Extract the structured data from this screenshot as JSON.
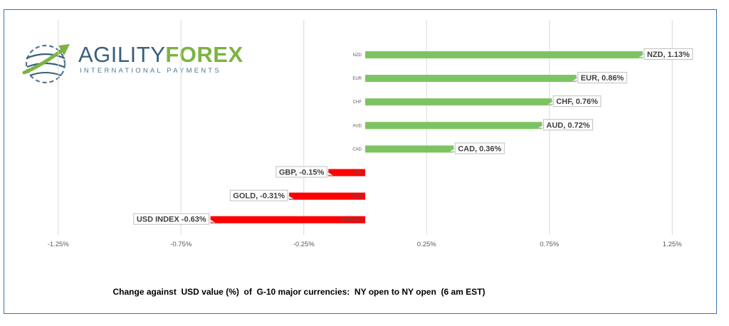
{
  "logo": {
    "word1": "AGILITY",
    "word2": "FOREX",
    "tagline": "INTERNATIONAL PAYMENTS"
  },
  "caption": "Change against  USD value (%)  of  G-10 major currencies:  NY open to NY open  (6 am EST)",
  "colors": {
    "positive": "#7cc462",
    "negative": "#ff0000",
    "grid": "#d9d9d9",
    "frame": "#2e75b6"
  },
  "chart_data": {
    "type": "bar",
    "orientation": "horizontal",
    "categories": [
      "NZD",
      "EUR",
      "CHF",
      "AUD",
      "CAD",
      "GBP",
      "GOLD",
      "USD INDEX"
    ],
    "values": [
      1.13,
      0.86,
      0.76,
      0.72,
      0.36,
      -0.15,
      -0.31,
      -0.63
    ],
    "data_labels": [
      "NZD, 1.13%",
      "EUR, 0.86%",
      "CHF, 0.76%",
      "AUD, 0.72%",
      "CAD, 0.36%",
      "GBP, -0.15%",
      "GOLD, -0.31%",
      "USD INDEX -0.63%"
    ],
    "x_ticks": [
      -1.25,
      -0.75,
      -0.25,
      0.25,
      0.75,
      1.25
    ],
    "x_tick_labels": [
      "-1.25%",
      "-0.75%",
      "-0.25%",
      "0.25%",
      "0.75%",
      "1.25%"
    ],
    "xlim": [
      -1.5,
      1.5
    ],
    "grid": true,
    "legend": false
  }
}
